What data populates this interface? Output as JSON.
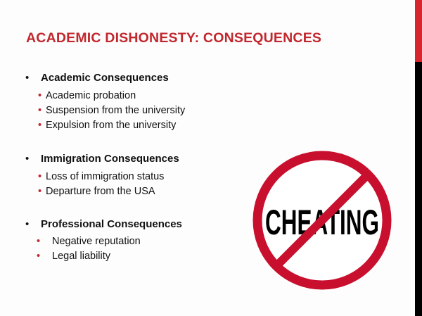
{
  "title": "ACADEMIC DISHONESTY: CONSEQUENCES",
  "sections": [
    {
      "heading": "Academic Consequences",
      "items": [
        "Academic probation",
        "Suspension from the university",
        "Expulsion from the university"
      ]
    },
    {
      "heading": "Immigration Consequences",
      "items": [
        "Loss of immigration status",
        "Departure from the USA"
      ]
    },
    {
      "heading": "Professional Consequences",
      "items": [
        "Negative reputation",
        "Legal liability"
      ]
    }
  ],
  "image": {
    "text": "CHEATING",
    "icon": "no-cheating-prohibition-sign"
  },
  "colors": {
    "accent": "#c1272d",
    "sidebar_top": "#d7262e",
    "sidebar_bottom": "#000000"
  }
}
